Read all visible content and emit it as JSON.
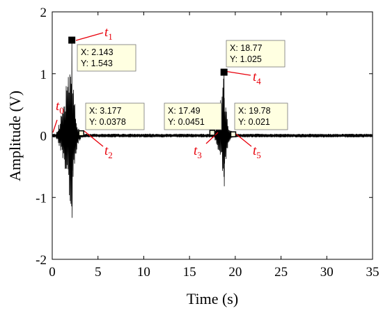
{
  "chart_data": {
    "type": "line",
    "xlabel": "Time (s)",
    "ylabel": "Amplitude (V)",
    "xlim": [
      0,
      35
    ],
    "ylim": [
      -2,
      2
    ],
    "x_ticks": [
      0,
      5,
      10,
      15,
      20,
      25,
      30,
      35
    ],
    "y_ticks": [
      -2,
      -1,
      0,
      1,
      2
    ],
    "grid": false,
    "line_color": "#000000",
    "marker_color": "#000000",
    "datatip_bg": "#ffffe1",
    "annotation_color": "#e8000b",
    "bursts": [
      {
        "start": 0.2,
        "peak_time": 2.143,
        "end": 3.177,
        "max": 1.543,
        "min": -1.33
      },
      {
        "start": 17.49,
        "peak_time": 18.77,
        "end": 19.78,
        "max": 1.025,
        "min": -0.82
      }
    ],
    "datatips": [
      {
        "id": "t1",
        "x_label": "X: 2.143",
        "y_label": "Y: 1.543",
        "x": 2.143,
        "y": 1.543
      },
      {
        "id": "t2",
        "x_label": "X: 3.177",
        "y_label": "Y: 0.0378",
        "x": 3.177,
        "y": 0.0378
      },
      {
        "id": "t3",
        "x_label": "X: 17.49",
        "y_label": "Y: 0.0451",
        "x": 17.49,
        "y": 0.0451
      },
      {
        "id": "t4",
        "x_label": "X: 18.77",
        "y_label": "Y: 1.025",
        "x": 18.77,
        "y": 1.025
      },
      {
        "id": "t5",
        "x_label": "X: 19.78",
        "y_label": "Y: 0.021",
        "x": 19.78,
        "y": 0.021
      }
    ],
    "annotations": [
      {
        "main": "t",
        "sub": "0"
      },
      {
        "main": "t",
        "sub": "1"
      },
      {
        "main": "t",
        "sub": "2"
      },
      {
        "main": "t",
        "sub": "3"
      },
      {
        "main": "t",
        "sub": "4"
      },
      {
        "main": "t",
        "sub": "5"
      }
    ]
  }
}
